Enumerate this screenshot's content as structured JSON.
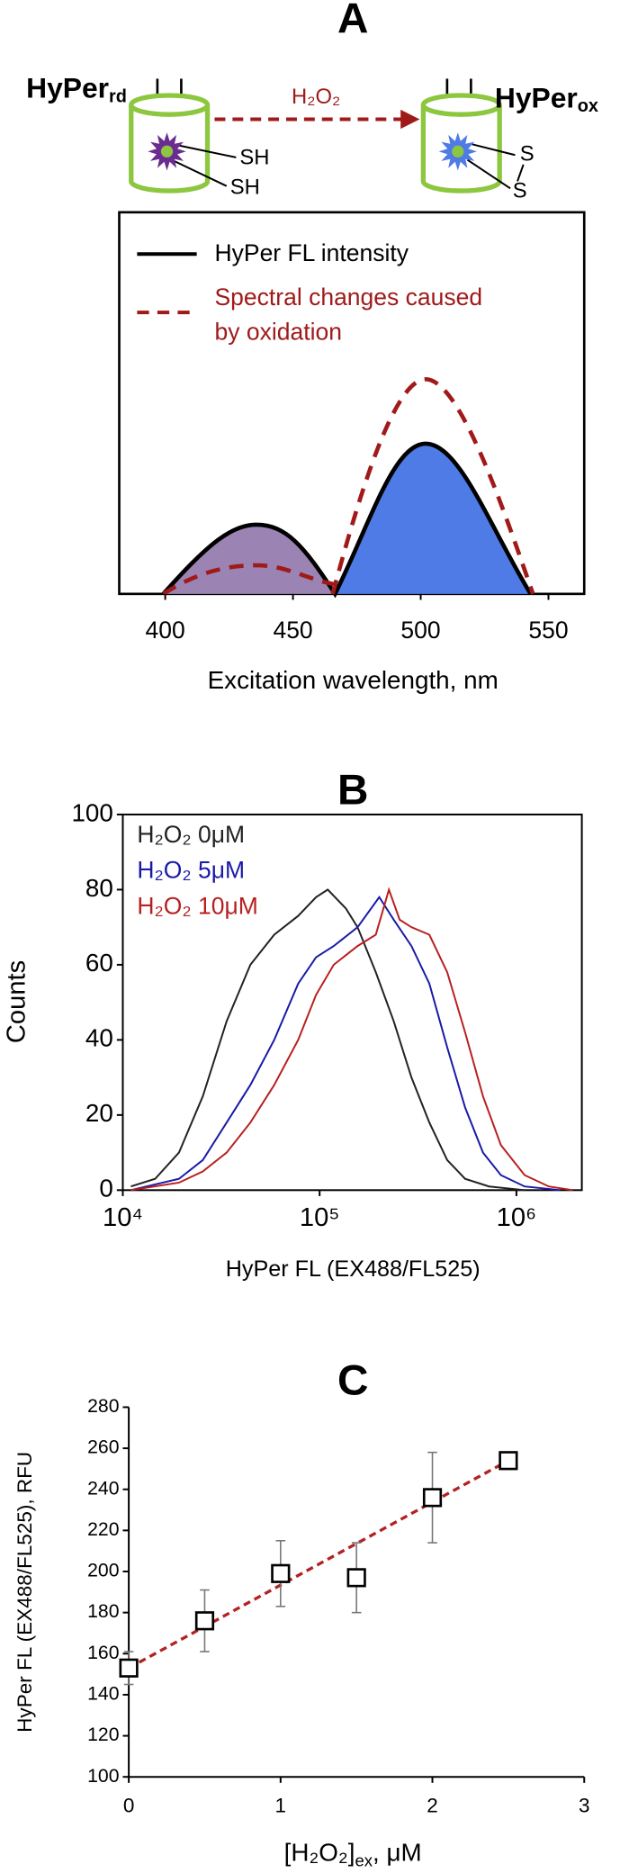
{
  "chart_data": [
    {
      "type": "schematic",
      "title": "A",
      "reduced_label": "HyPer",
      "reduced_sub": "rd",
      "oxidized_label": "HyPer",
      "oxidized_sub": "ox",
      "arrow_label": "H₂O₂",
      "thiol_labels": [
        "SH",
        "SH"
      ],
      "disulfide_labels": [
        "S",
        "S"
      ],
      "xlabel": "Excitation wavelength, nm",
      "xlim": [
        382,
        564
      ],
      "xticks": [
        400,
        450,
        500,
        550
      ],
      "series": [
        {
          "name": "HyPer FL intensity",
          "color": "#000000"
        },
        {
          "name": "Spectral changes caused by oxidation",
          "color": "#a01a1a"
        }
      ]
    },
    {
      "type": "line",
      "title": "B",
      "xlabel": "HyPer FL (EX488/FL525)",
      "ylabel": "Counts",
      "xscale": "log",
      "xlim": [
        10000,
        2150000
      ],
      "xticks": [
        {
          "value": 10000,
          "label": "10⁴"
        },
        {
          "value": 100000,
          "label": "10⁵"
        },
        {
          "value": 1000000,
          "label": "10⁶"
        }
      ],
      "ylim": [
        0,
        100
      ],
      "yticks": [
        0,
        20,
        40,
        60,
        80,
        100
      ],
      "series": [
        {
          "name": "H₂O₂ 0μM",
          "color": "#222222",
          "x": [
            11000,
            14600,
            19300,
            25500,
            33700,
            44500,
            58800,
            77800,
            96000,
            110000,
            136000,
            156000,
            193000,
            238000,
            293000,
            361000,
            445000,
            549000,
            726000,
            1100000
          ],
          "values": [
            1,
            3,
            10,
            25,
            45,
            60,
            68,
            73,
            78,
            80,
            75,
            70,
            58,
            45,
            30,
            18,
            8,
            3,
            1,
            0
          ]
        },
        {
          "name": "H₂O₂ 5μM",
          "color": "#1a1aa8",
          "x": [
            11000,
            19300,
            25500,
            33700,
            44500,
            58800,
            77800,
            96000,
            118000,
            156000,
            201000,
            238000,
            293000,
            361000,
            445000,
            549000,
            676000,
            834000,
            1100000,
            1670000
          ],
          "values": [
            0,
            3,
            8,
            18,
            28,
            40,
            55,
            62,
            65,
            70,
            78,
            72,
            65,
            55,
            38,
            22,
            10,
            4,
            1,
            0
          ]
        },
        {
          "name": "H₂O₂ 10μM",
          "color": "#b82020",
          "x": [
            11000,
            19300,
            25500,
            33700,
            44500,
            58800,
            77800,
            96000,
            118000,
            156000,
            193000,
            225000,
            255000,
            293000,
            361000,
            445000,
            549000,
            676000,
            834000,
            1100000,
            1460000,
            1930000
          ],
          "values": [
            0,
            2,
            5,
            10,
            18,
            28,
            40,
            52,
            60,
            65,
            68,
            80,
            72,
            70,
            68,
            58,
            42,
            25,
            12,
            4,
            1,
            0
          ]
        }
      ]
    },
    {
      "type": "scatter",
      "title": "C",
      "ylabel": "HyPer FL (EX488/FL525), RFU",
      "xlabel": "[H₂O₂]",
      "xlabel_sub": "ex",
      "xlabel_unit": ", μM",
      "xlim": [
        0,
        3
      ],
      "xticks": [
        0,
        1,
        2,
        3
      ],
      "ylim": [
        100,
        280
      ],
      "yticks": [
        100,
        120,
        140,
        160,
        180,
        200,
        220,
        240,
        260,
        280
      ],
      "x": [
        0,
        0.5,
        1,
        1.5,
        2,
        2.5
      ],
      "values": [
        153,
        176,
        199,
        197,
        236,
        254
      ],
      "errors": [
        8,
        15,
        16,
        17,
        22,
        4
      ],
      "color": "#000000",
      "error_color": "#777777",
      "trendline": {
        "x": [
          0,
          2.5
        ],
        "values": [
          153,
          254
        ],
        "color": "#b22222"
      }
    }
  ]
}
